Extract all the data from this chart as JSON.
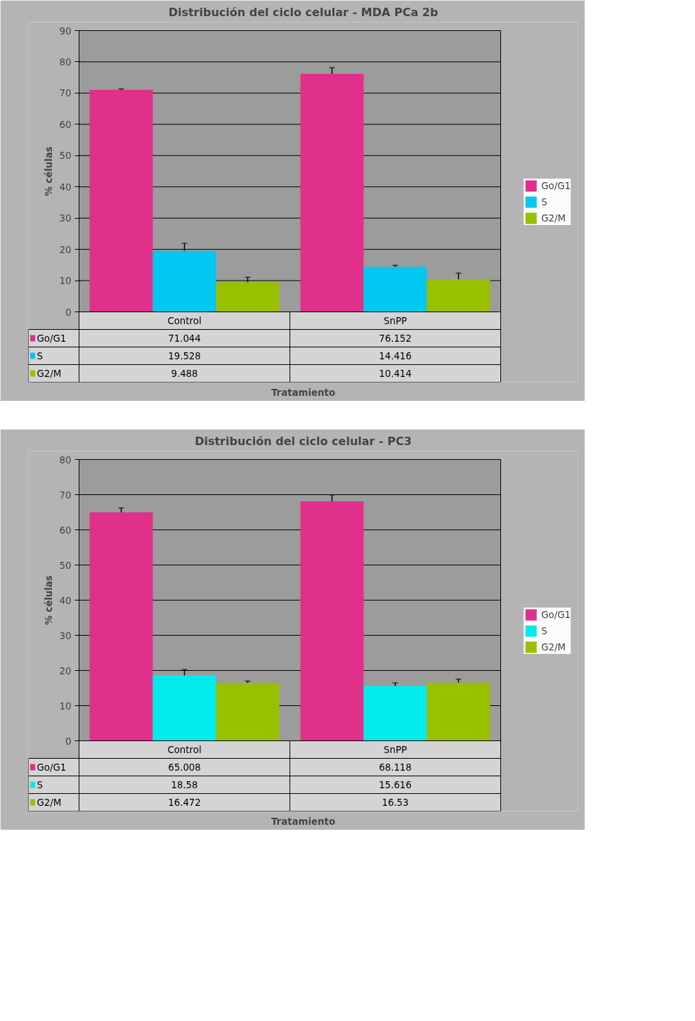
{
  "chart_data": [
    {
      "type": "bar",
      "title": "Distribución del ciclo celular - MDA PCa 2b",
      "xlabel": "Tratamiento",
      "ylabel": "% células",
      "categories": [
        "Control",
        "SnPP"
      ],
      "ylim": [
        0,
        90
      ],
      "yticks": [
        0,
        10,
        20,
        30,
        40,
        50,
        60,
        70,
        80,
        90
      ],
      "grid": "y",
      "legend": "right",
      "data_labels": true,
      "series": [
        {
          "name": "Go/G1",
          "color": "#e0308a",
          "values": [
            71.044,
            76.152
          ],
          "errors": [
            0.3,
            2.0
          ]
        },
        {
          "name": "S",
          "color": "#00c8f0",
          "values": [
            19.528,
            14.416
          ],
          "errors": [
            2.4,
            0.5
          ]
        },
        {
          "name": "G2/M",
          "color": "#99c000",
          "values": [
            9.488,
            10.414
          ],
          "errors": [
            1.6,
            2.0
          ]
        }
      ]
    },
    {
      "type": "bar",
      "title": "Distribución del ciclo celular - PC3",
      "xlabel": "Tratamiento",
      "ylabel": "% células",
      "categories": [
        "Control",
        "SnPP"
      ],
      "ylim": [
        0,
        80
      ],
      "yticks": [
        0,
        10,
        20,
        30,
        40,
        50,
        60,
        70,
        80
      ],
      "grid": "y",
      "legend": "right",
      "data_labels": true,
      "series": [
        {
          "name": "Go/G1",
          "color": "#e0308a",
          "values": [
            65.008,
            68.118
          ],
          "errors": [
            1.2,
            1.8
          ]
        },
        {
          "name": "S",
          "color": "#00ecec",
          "values": [
            18.58,
            15.616
          ],
          "errors": [
            1.7,
            0.85
          ]
        },
        {
          "name": "G2/M",
          "color": "#99c000",
          "values": [
            16.472,
            16.53
          ],
          "errors": [
            0.5,
            1.0
          ]
        }
      ]
    }
  ]
}
